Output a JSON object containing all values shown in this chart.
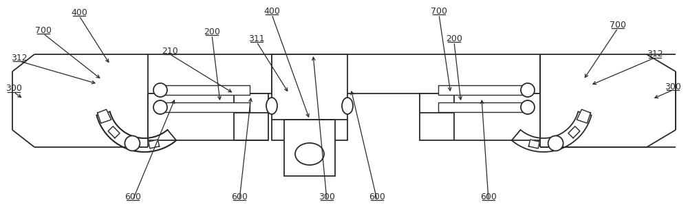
{
  "bg_color": "#ffffff",
  "line_color": "#2a2a2a",
  "fig_width": 10.0,
  "fig_height": 3.04,
  "dpi": 100
}
